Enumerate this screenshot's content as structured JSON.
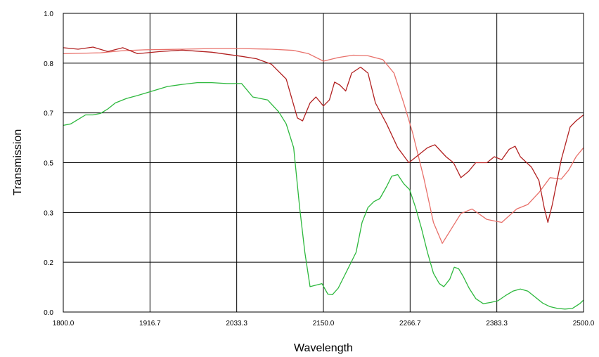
{
  "chart_data": {
    "type": "line",
    "title": "",
    "xlabel": "Wavelength",
    "ylabel": "Transmission",
    "xlim": [
      1800,
      2500
    ],
    "ylim": [
      0,
      1.0
    ],
    "grid": true,
    "legend": "none",
    "x_ticks": [
      "1800.0",
      "1916.7",
      "2033.3",
      "2150.0",
      "2266.7",
      "2383.3",
      "2500.0"
    ],
    "y_ticks": [
      {
        "value": 0,
        "label": "0.0"
      },
      {
        "value": 0.1667,
        "label": "0.2"
      },
      {
        "value": 0.3333,
        "label": "0.3"
      },
      {
        "value": 0.5,
        "label": "0.5"
      },
      {
        "value": 0.6667,
        "label": "0.7"
      },
      {
        "value": 0.8333,
        "label": "0.8"
      },
      {
        "value": 1.0,
        "label": "1.0"
      }
    ],
    "series": [
      {
        "color": "#e8706a",
        "points": [
          [
            1800,
            0.865
          ],
          [
            1850,
            0.868
          ],
          [
            1880,
            0.875
          ],
          [
            1910,
            0.878
          ],
          [
            1960,
            0.88
          ],
          [
            2000,
            0.882
          ],
          [
            2040,
            0.882
          ],
          [
            2080,
            0.88
          ],
          [
            2110,
            0.876
          ],
          [
            2130,
            0.865
          ],
          [
            2150,
            0.84
          ],
          [
            2170,
            0.852
          ],
          [
            2190,
            0.86
          ],
          [
            2210,
            0.858
          ],
          [
            2230,
            0.845
          ],
          [
            2245,
            0.8
          ],
          [
            2258,
            0.7
          ],
          [
            2270,
            0.6
          ],
          [
            2285,
            0.45
          ],
          [
            2298,
            0.3
          ],
          [
            2310,
            0.23
          ],
          [
            2320,
            0.27
          ],
          [
            2335,
            0.33
          ],
          [
            2350,
            0.345
          ],
          [
            2370,
            0.31
          ],
          [
            2390,
            0.3
          ],
          [
            2410,
            0.345
          ],
          [
            2425,
            0.36
          ],
          [
            2440,
            0.4
          ],
          [
            2455,
            0.45
          ],
          [
            2470,
            0.445
          ],
          [
            2480,
            0.475
          ],
          [
            2490,
            0.52
          ],
          [
            2500,
            0.55
          ]
        ]
      },
      {
        "color": "#b22222",
        "points": [
          [
            1800,
            0.885
          ],
          [
            1820,
            0.88
          ],
          [
            1840,
            0.887
          ],
          [
            1860,
            0.872
          ],
          [
            1880,
            0.885
          ],
          [
            1900,
            0.865
          ],
          [
            1930,
            0.872
          ],
          [
            1960,
            0.877
          ],
          [
            2000,
            0.87
          ],
          [
            2040,
            0.856
          ],
          [
            2060,
            0.848
          ],
          [
            2080,
            0.83
          ],
          [
            2100,
            0.78
          ],
          [
            2115,
            0.65
          ],
          [
            2122,
            0.64
          ],
          [
            2132,
            0.7
          ],
          [
            2140,
            0.72
          ],
          [
            2150,
            0.69
          ],
          [
            2158,
            0.71
          ],
          [
            2165,
            0.77
          ],
          [
            2172,
            0.76
          ],
          [
            2180,
            0.74
          ],
          [
            2188,
            0.8
          ],
          [
            2200,
            0.82
          ],
          [
            2210,
            0.8
          ],
          [
            2220,
            0.7
          ],
          [
            2235,
            0.63
          ],
          [
            2250,
            0.55
          ],
          [
            2265,
            0.5
          ],
          [
            2275,
            0.52
          ],
          [
            2290,
            0.55
          ],
          [
            2300,
            0.56
          ],
          [
            2315,
            0.52
          ],
          [
            2325,
            0.5
          ],
          [
            2335,
            0.45
          ],
          [
            2345,
            0.47
          ],
          [
            2355,
            0.5
          ],
          [
            2370,
            0.5
          ],
          [
            2380,
            0.52
          ],
          [
            2390,
            0.51
          ],
          [
            2400,
            0.545
          ],
          [
            2408,
            0.555
          ],
          [
            2415,
            0.52
          ],
          [
            2430,
            0.485
          ],
          [
            2440,
            0.44
          ],
          [
            2447,
            0.35
          ],
          [
            2452,
            0.3
          ],
          [
            2458,
            0.36
          ],
          [
            2470,
            0.51
          ],
          [
            2482,
            0.62
          ],
          [
            2490,
            0.64
          ],
          [
            2500,
            0.66
          ]
        ]
      },
      {
        "color": "#2db83d",
        "points": [
          [
            1800,
            0.625
          ],
          [
            1810,
            0.63
          ],
          [
            1820,
            0.645
          ],
          [
            1830,
            0.66
          ],
          [
            1840,
            0.66
          ],
          [
            1850,
            0.665
          ],
          [
            1860,
            0.68
          ],
          [
            1870,
            0.7
          ],
          [
            1885,
            0.715
          ],
          [
            1900,
            0.725
          ],
          [
            1920,
            0.74
          ],
          [
            1940,
            0.755
          ],
          [
            1960,
            0.762
          ],
          [
            1980,
            0.768
          ],
          [
            2000,
            0.768
          ],
          [
            2020,
            0.765
          ],
          [
            2040,
            0.765
          ],
          [
            2055,
            0.72
          ],
          [
            2075,
            0.71
          ],
          [
            2090,
            0.67
          ],
          [
            2100,
            0.63
          ],
          [
            2110,
            0.55
          ],
          [
            2118,
            0.35
          ],
          [
            2125,
            0.2
          ],
          [
            2132,
            0.085
          ],
          [
            2140,
            0.09
          ],
          [
            2148,
            0.095
          ],
          [
            2156,
            0.06
          ],
          [
            2162,
            0.058
          ],
          [
            2170,
            0.08
          ],
          [
            2178,
            0.12
          ],
          [
            2186,
            0.16
          ],
          [
            2194,
            0.2
          ],
          [
            2202,
            0.3
          ],
          [
            2210,
            0.35
          ],
          [
            2218,
            0.37
          ],
          [
            2226,
            0.38
          ],
          [
            2235,
            0.42
          ],
          [
            2242,
            0.455
          ],
          [
            2250,
            0.46
          ],
          [
            2258,
            0.43
          ],
          [
            2266,
            0.41
          ],
          [
            2274,
            0.35
          ],
          [
            2282,
            0.28
          ],
          [
            2290,
            0.2
          ],
          [
            2298,
            0.13
          ],
          [
            2306,
            0.095
          ],
          [
            2312,
            0.085
          ],
          [
            2320,
            0.11
          ],
          [
            2326,
            0.15
          ],
          [
            2332,
            0.145
          ],
          [
            2338,
            0.12
          ],
          [
            2346,
            0.08
          ],
          [
            2355,
            0.045
          ],
          [
            2365,
            0.028
          ],
          [
            2375,
            0.032
          ],
          [
            2385,
            0.038
          ],
          [
            2395,
            0.055
          ],
          [
            2405,
            0.07
          ],
          [
            2415,
            0.077
          ],
          [
            2425,
            0.07
          ],
          [
            2435,
            0.05
          ],
          [
            2445,
            0.03
          ],
          [
            2455,
            0.018
          ],
          [
            2465,
            0.012
          ],
          [
            2475,
            0.01
          ],
          [
            2485,
            0.012
          ],
          [
            2495,
            0.028
          ],
          [
            2500,
            0.04
          ]
        ]
      }
    ]
  }
}
